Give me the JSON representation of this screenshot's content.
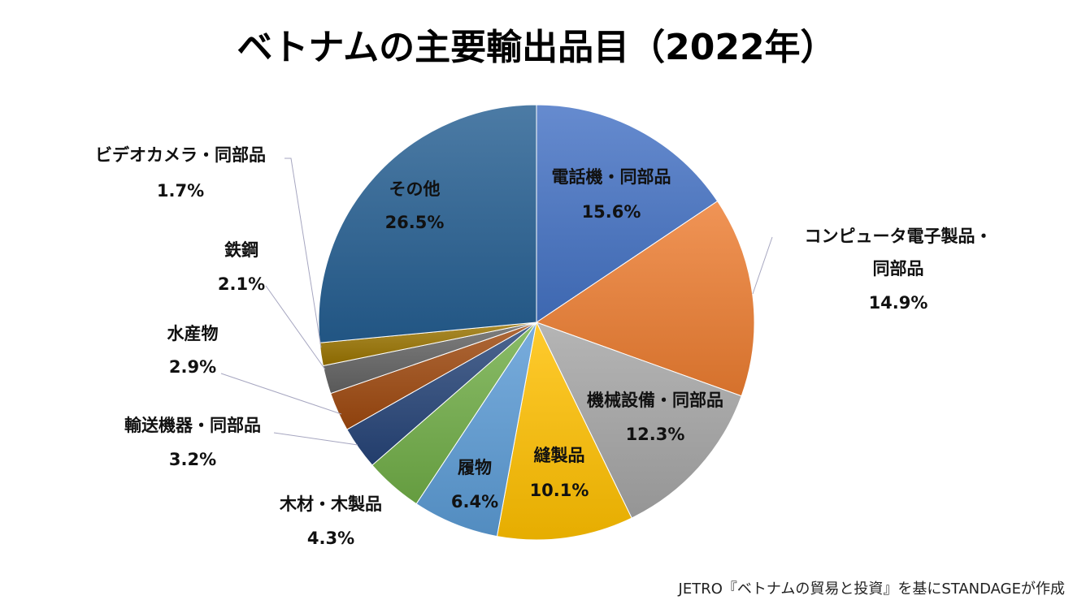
{
  "chart_data": {
    "type": "pie",
    "title": "ベトナムの主要輸出品目（2022年）",
    "unit": "%",
    "start_angle": "12 o'clock",
    "direction": "clockwise",
    "slices": [
      {
        "label": "電話機・同部品",
        "value": 15.6,
        "value_label": "15.6%",
        "color": "#4472C4"
      },
      {
        "label": "コンピュータ電子製品・同部品",
        "label_lines": [
          "コンピュータ電子製品・",
          "同部品"
        ],
        "value": 14.9,
        "value_label": "14.9%",
        "color": "#ED7D31"
      },
      {
        "label": "機械設備・同部品",
        "value": 12.3,
        "value_label": "12.3%",
        "color": "#A5A5A5"
      },
      {
        "label": "縫製品",
        "value": 10.1,
        "value_label": "10.1%",
        "color": "#FFC000"
      },
      {
        "label": "履物",
        "value": 6.4,
        "value_label": "6.4%",
        "color": "#5B9BD5"
      },
      {
        "label": "木材・木製品",
        "value": 4.3,
        "value_label": "4.3%",
        "color": "#70AD47"
      },
      {
        "label": "輸送機器・同部品",
        "value": 3.2,
        "value_label": "3.2%",
        "color": "#264478"
      },
      {
        "label": "水産物",
        "value": 2.9,
        "value_label": "2.9%",
        "color": "#9E480E"
      },
      {
        "label": "鉄鋼",
        "value": 2.1,
        "value_label": "2.1%",
        "color": "#636363"
      },
      {
        "label": "ビデオカメラ・同部品",
        "value": 1.7,
        "value_label": "1.7%",
        "color": "#997300"
      },
      {
        "label": "その他",
        "value": 26.5,
        "value_label": "26.5%",
        "color": "#255E91"
      }
    ]
  },
  "source": "JETRO『ベトナムの貿易と投資』を基にSTANDAGEが作成"
}
